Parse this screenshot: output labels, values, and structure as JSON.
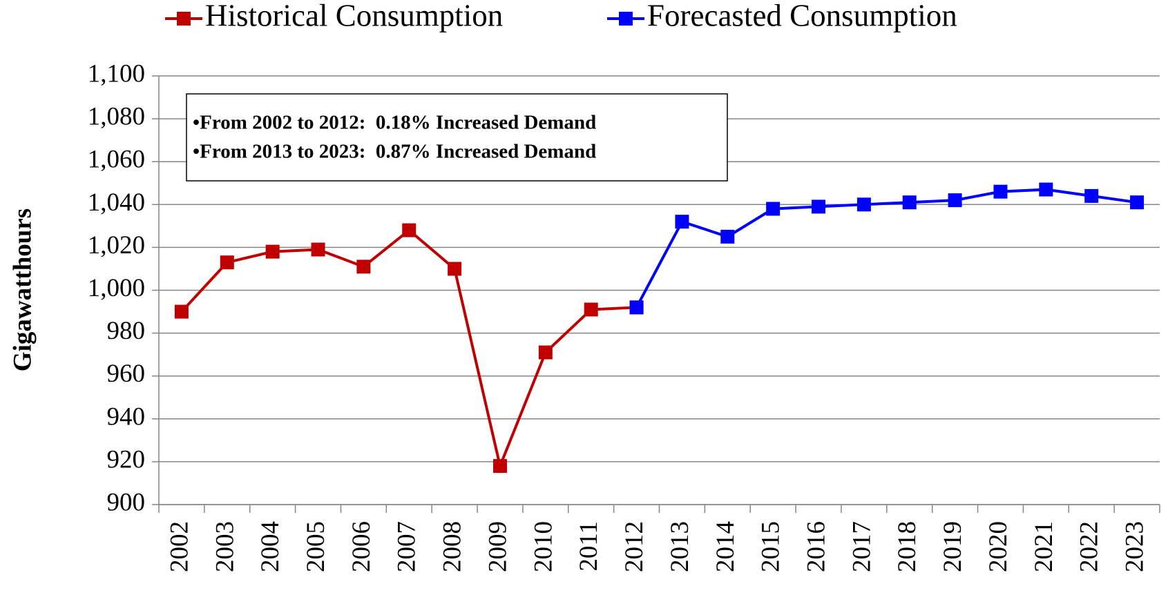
{
  "chart_data": {
    "type": "line",
    "y_label": "Gigawatthours",
    "annotations": [
      "•From 2002 to 2012:  0.18% Increased Demand",
      "•From 2013 to 2023:  0.87% Increased Demand"
    ],
    "categories": [
      "2002",
      "2003",
      "2004",
      "2005",
      "2006",
      "2007",
      "2008",
      "2009",
      "2010",
      "2011",
      "2012",
      "2013",
      "2014",
      "2015",
      "2016",
      "2017",
      "2018",
      "2019",
      "2020",
      "2021",
      "2022",
      "2023"
    ],
    "series": [
      {
        "name": "Historical Consumption",
        "color": "#c00000",
        "values": [
          990,
          1013,
          1018,
          1019,
          1011,
          1028,
          1010,
          918,
          971,
          991,
          992,
          null,
          null,
          null,
          null,
          null,
          null,
          null,
          null,
          null,
          null,
          null
        ]
      },
      {
        "name": "Forecasted Consumption",
        "color": "#0000ff",
        "values": [
          null,
          null,
          null,
          null,
          null,
          null,
          null,
          null,
          null,
          null,
          992,
          1032,
          1025,
          1038,
          1039,
          1040,
          1041,
          1042,
          1046,
          1047,
          1044,
          1041
        ]
      }
    ],
    "ylim": [
      900,
      1100
    ],
    "yticks": [
      900,
      920,
      940,
      960,
      980,
      {
        "value": 1000,
        "label": "1,000"
      },
      {
        "value": 1020,
        "label": "1,020"
      },
      {
        "value": 1040,
        "label": "1,040"
      },
      {
        "value": 1060,
        "label": "1,060"
      },
      {
        "value": 1080,
        "label": "1,080"
      },
      {
        "value": 1100,
        "label": "1,100"
      }
    ],
    "grid": true,
    "legend": "top"
  }
}
